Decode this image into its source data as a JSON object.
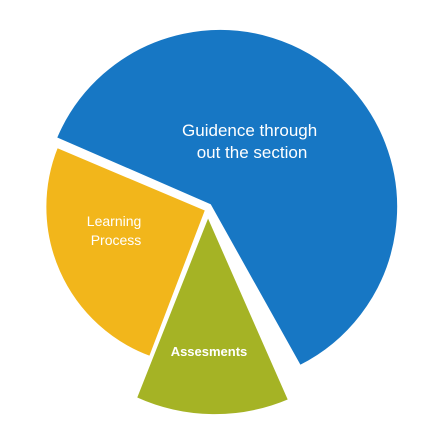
{
  "chart_data": {
    "type": "pie",
    "slices": [
      {
        "label_lines": [
          "Guidence through",
          "out the section"
        ],
        "color": "#1777c4",
        "exploded": false
      },
      {
        "label_lines": [
          "Learning",
          "Process"
        ],
        "color": "#f2b61b",
        "exploded": true
      },
      {
        "label_lines": [
          "Assesments"
        ],
        "color": "#a5b325",
        "exploded": true
      }
    ]
  }
}
